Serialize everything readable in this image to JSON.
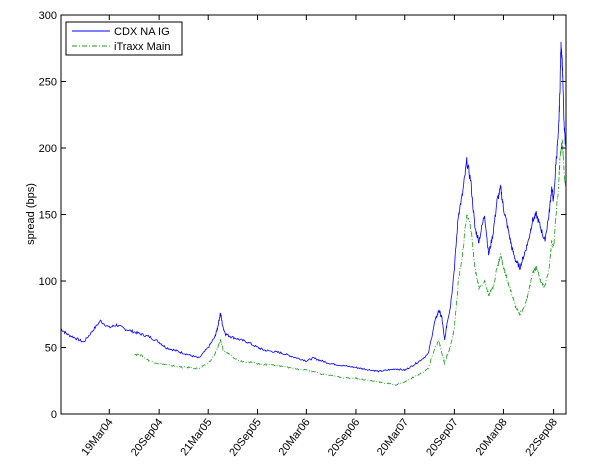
{
  "chart_data": {
    "type": "line",
    "title": "",
    "xlabel": "",
    "ylabel": "spread (bps)",
    "ylim": [
      0,
      300
    ],
    "yticks": [
      0,
      50,
      100,
      150,
      200,
      250,
      300
    ],
    "xlim": [
      "2003-09-22",
      "2008-11-07"
    ],
    "xticks": [
      {
        "label": "19Mar04",
        "date": "2004-03-19"
      },
      {
        "label": "20Sep04",
        "date": "2004-09-20"
      },
      {
        "label": "21Mar05",
        "date": "2005-03-21"
      },
      {
        "label": "20Sep05",
        "date": "2005-09-20"
      },
      {
        "label": "20Mar06",
        "date": "2006-03-20"
      },
      {
        "label": "20Sep06",
        "date": "2006-09-20"
      },
      {
        "label": "20Mar07",
        "date": "2007-03-20"
      },
      {
        "label": "20Sep07",
        "date": "2007-09-20"
      },
      {
        "label": "20Mar08",
        "date": "2008-03-20"
      },
      {
        "label": "22Sep08",
        "date": "2008-09-22"
      }
    ],
    "grid": false,
    "legend_position": "top-left",
    "colors": {
      "cdx": "#0000ff",
      "itraxx": "#1a9a1a"
    },
    "series": [
      {
        "name": "CDX NA IG",
        "x": [
          "2003-09-22",
          "2003-10-15",
          "2003-11-15",
          "2003-12-15",
          "2004-01-15",
          "2004-02-15",
          "2004-03-19",
          "2004-04-15",
          "2004-05-15",
          "2004-06-15",
          "2004-07-15",
          "2004-08-15",
          "2004-09-20",
          "2004-10-15",
          "2004-11-15",
          "2004-12-15",
          "2005-01-15",
          "2005-02-15",
          "2005-03-21",
          "2005-04-15",
          "2005-04-25",
          "2005-05-05",
          "2005-05-15",
          "2005-05-25",
          "2005-06-15",
          "2005-07-15",
          "2005-08-15",
          "2005-09-20",
          "2005-10-15",
          "2005-11-15",
          "2005-12-15",
          "2006-01-15",
          "2006-02-15",
          "2006-03-20",
          "2006-04-15",
          "2006-05-15",
          "2006-06-15",
          "2006-07-15",
          "2006-08-15",
          "2006-09-20",
          "2006-10-15",
          "2006-11-15",
          "2006-12-15",
          "2007-01-15",
          "2007-02-15",
          "2007-03-20",
          "2007-04-15",
          "2007-05-15",
          "2007-06-15",
          "2007-07-10",
          "2007-07-25",
          "2007-08-05",
          "2007-08-15",
          "2007-08-25",
          "2007-09-05",
          "2007-09-20",
          "2007-10-05",
          "2007-10-20",
          "2007-11-05",
          "2007-11-20",
          "2007-12-05",
          "2007-12-20",
          "2008-01-10",
          "2008-01-25",
          "2008-02-10",
          "2008-02-25",
          "2008-03-10",
          "2008-03-20",
          "2008-04-05",
          "2008-04-20",
          "2008-05-05",
          "2008-05-20",
          "2008-06-05",
          "2008-06-20",
          "2008-07-05",
          "2008-07-20",
          "2008-08-05",
          "2008-08-20",
          "2008-09-05",
          "2008-09-15",
          "2008-09-22",
          "2008-10-01",
          "2008-10-10",
          "2008-10-15",
          "2008-10-20",
          "2008-10-25",
          "2008-10-31",
          "2008-11-07"
        ],
        "values": [
          64,
          60,
          57,
          54,
          62,
          70,
          65,
          67,
          64,
          62,
          60,
          58,
          54,
          50,
          48,
          46,
          44,
          42,
          50,
          58,
          65,
          76,
          65,
          60,
          58,
          56,
          54,
          50,
          48,
          47,
          46,
          44,
          42,
          40,
          42,
          40,
          38,
          37,
          36,
          35,
          34,
          33,
          32,
          33,
          34,
          33,
          36,
          40,
          45,
          70,
          78,
          72,
          55,
          70,
          80,
          110,
          150,
          165,
          190,
          175,
          140,
          130,
          150,
          120,
          135,
          160,
          170,
          155,
          140,
          125,
          115,
          110,
          120,
          130,
          145,
          150,
          140,
          130,
          150,
          170,
          160,
          190,
          210,
          240,
          280,
          260,
          215,
          200
        ]
      },
      {
        "name": "iTraxx Main",
        "x": [
          "2004-06-21",
          "2004-07-15",
          "2004-08-15",
          "2004-09-20",
          "2004-10-15",
          "2004-11-15",
          "2004-12-15",
          "2005-01-15",
          "2005-02-15",
          "2005-03-21",
          "2005-04-15",
          "2005-04-25",
          "2005-05-05",
          "2005-05-15",
          "2005-06-15",
          "2005-07-15",
          "2005-08-15",
          "2005-09-20",
          "2005-10-15",
          "2005-11-15",
          "2005-12-15",
          "2006-01-15",
          "2006-02-15",
          "2006-03-20",
          "2006-04-15",
          "2006-05-15",
          "2006-06-15",
          "2006-07-15",
          "2006-08-15",
          "2006-09-20",
          "2006-10-15",
          "2006-11-15",
          "2006-12-15",
          "2007-01-15",
          "2007-02-15",
          "2007-03-20",
          "2007-04-15",
          "2007-05-15",
          "2007-06-15",
          "2007-07-10",
          "2007-07-25",
          "2007-08-05",
          "2007-08-15",
          "2007-08-25",
          "2007-09-05",
          "2007-09-20",
          "2007-10-05",
          "2007-10-20",
          "2007-11-05",
          "2007-11-20",
          "2007-12-05",
          "2007-12-20",
          "2008-01-10",
          "2008-01-25",
          "2008-02-10",
          "2008-02-25",
          "2008-03-10",
          "2008-03-20",
          "2008-04-05",
          "2008-04-20",
          "2008-05-05",
          "2008-05-20",
          "2008-06-05",
          "2008-06-20",
          "2008-07-05",
          "2008-07-20",
          "2008-08-05",
          "2008-08-20",
          "2008-09-05",
          "2008-09-15",
          "2008-09-22",
          "2008-10-01",
          "2008-10-10",
          "2008-10-15",
          "2008-10-20",
          "2008-10-25",
          "2008-10-31",
          "2008-11-07"
        ],
        "values": [
          45,
          44,
          40,
          38,
          37,
          36,
          35,
          35,
          34,
          38,
          45,
          50,
          56,
          48,
          44,
          40,
          39,
          38,
          37,
          37,
          36,
          35,
          34,
          33,
          32,
          30,
          29,
          28,
          27,
          27,
          26,
          25,
          24,
          23,
          22,
          24,
          27,
          30,
          34,
          50,
          55,
          45,
          38,
          45,
          50,
          65,
          100,
          120,
          150,
          140,
          110,
          95,
          100,
          90,
          95,
          110,
          120,
          110,
          100,
          90,
          80,
          75,
          80,
          90,
          105,
          110,
          100,
          95,
          110,
          130,
          125,
          150,
          170,
          190,
          200,
          205,
          180,
          170
        ]
      }
    ]
  }
}
